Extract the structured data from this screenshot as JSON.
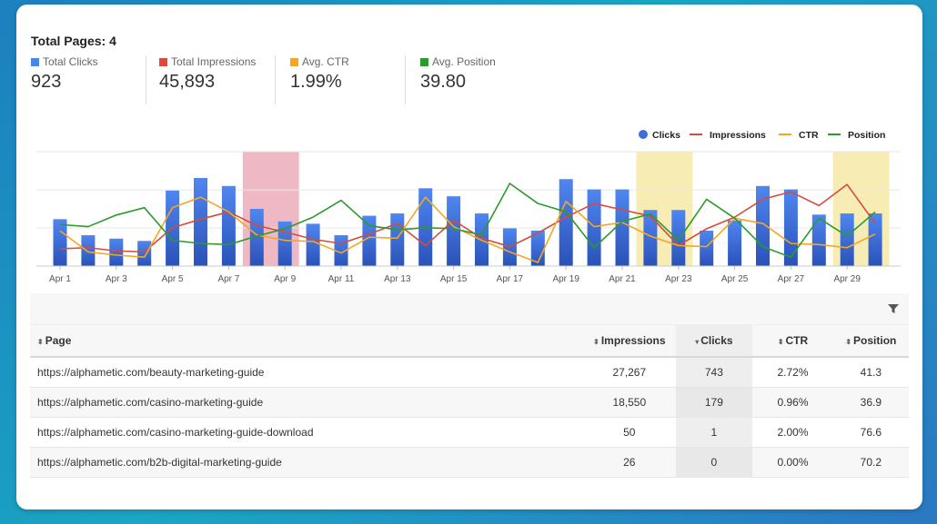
{
  "summary": {
    "title": "Total Pages: 4",
    "metrics": [
      {
        "label": "Total Clicks",
        "value": "923",
        "color": "#4a86e8"
      },
      {
        "label": "Total Impressions",
        "value": "45,893",
        "color": "#e0483a"
      },
      {
        "label": "Avg. CTR",
        "value": "1.99%",
        "color": "#f5a623"
      },
      {
        "label": "Avg. Position",
        "value": "39.80",
        "color": "#2e9a2e"
      }
    ]
  },
  "chart_data": {
    "type": "bar",
    "x": [
      "Apr 1",
      "Apr 2",
      "Apr 3",
      "Apr 4",
      "Apr 5",
      "Apr 6",
      "Apr 7",
      "Apr 8",
      "Apr 9",
      "Apr 10",
      "Apr 11",
      "Apr 12",
      "Apr 13",
      "Apr 14",
      "Apr 15",
      "Apr 16",
      "Apr 17",
      "Apr 18",
      "Apr 19",
      "Apr 20",
      "Apr 21",
      "Apr 22",
      "Apr 23",
      "Apr 24",
      "Apr 25",
      "Apr 26",
      "Apr 27",
      "Apr 28",
      "Apr 29",
      "Apr 30"
    ],
    "tick_labels": [
      "Apr 1",
      "Apr 3",
      "Apr 5",
      "Apr 7",
      "Apr 9",
      "Apr 11",
      "Apr 13",
      "Apr 15",
      "Apr 17",
      "Apr 19",
      "Apr 21",
      "Apr 23",
      "Apr 25",
      "Apr 27",
      "Apr 29"
    ],
    "series": [
      {
        "name": "Clicks",
        "type": "bar",
        "color": "#3a6fd8",
        "values": [
          41,
          27,
          24,
          22,
          66,
          77,
          70,
          50,
          39,
          37,
          27,
          44,
          46,
          68,
          61,
          46,
          33,
          31,
          76,
          67,
          67,
          49,
          49,
          31,
          40,
          70,
          67,
          45,
          46,
          46
        ]
      },
      {
        "name": "Impressions",
        "type": "line",
        "color": "#d84a3a",
        "values": [
          0.13,
          0.14,
          0.11,
          0.1,
          0.33,
          0.41,
          0.48,
          0.35,
          0.29,
          0.22,
          0.18,
          0.27,
          0.37,
          0.16,
          0.4,
          0.23,
          0.15,
          0.28,
          0.43,
          0.56,
          0.5,
          0.44,
          0.16,
          0.32,
          0.43,
          0.6,
          0.67,
          0.54,
          0.74,
          0.37
        ]
      },
      {
        "name": "CTR",
        "type": "line",
        "color": "#f5a623",
        "values": [
          0.3,
          0.1,
          0.07,
          0.05,
          0.52,
          0.62,
          0.48,
          0.26,
          0.21,
          0.2,
          0.09,
          0.24,
          0.23,
          0.62,
          0.34,
          0.21,
          0.1,
          0.0,
          0.58,
          0.34,
          0.38,
          0.25,
          0.16,
          0.15,
          0.42,
          0.37,
          0.18,
          0.17,
          0.14,
          0.27
        ]
      },
      {
        "name": "Position",
        "type": "line",
        "color": "#2e9a2e",
        "values": [
          0.36,
          0.34,
          0.45,
          0.52,
          0.21,
          0.18,
          0.17,
          0.25,
          0.32,
          0.43,
          0.59,
          0.35,
          0.31,
          0.33,
          0.32,
          0.26,
          0.75,
          0.56,
          0.48,
          0.14,
          0.39,
          0.46,
          0.21,
          0.6,
          0.42,
          0.15,
          0.05,
          0.42,
          0.25,
          0.48
        ]
      }
    ],
    "highlight_bands": [
      {
        "from": "Apr 8",
        "to": "Apr 9",
        "color": "#eeb8c4"
      },
      {
        "from": "Apr 22",
        "to": "Apr 23",
        "color": "#f6ecb4"
      },
      {
        "from": "Apr 29",
        "to": "Apr 30",
        "color": "#f6ecb4"
      }
    ],
    "legend": [
      "Clicks",
      "Impressions",
      "CTR",
      "Position"
    ],
    "legend_placement": "top-right",
    "grid": true,
    "ylim": [
      0,
      100
    ]
  },
  "table": {
    "columns": [
      "Page",
      "Impressions",
      "Clicks",
      "CTR",
      "Position"
    ],
    "rows": [
      {
        "page": "https://alphametic.com/beauty-marketing-guide",
        "impressions": "27,267",
        "clicks": "743",
        "ctr": "2.72%",
        "position": "41.3"
      },
      {
        "page": "https://alphametic.com/casino-marketing-guide",
        "impressions": "18,550",
        "clicks": "179",
        "ctr": "0.96%",
        "position": "36.9"
      },
      {
        "page": "https://alphametic.com/casino-marketing-guide-download",
        "impressions": "50",
        "clicks": "1",
        "ctr": "2.00%",
        "position": "76.6"
      },
      {
        "page": "https://alphametic.com/b2b-digital-marketing-guide",
        "impressions": "26",
        "clicks": "0",
        "ctr": "0.00%",
        "position": "70.2"
      }
    ]
  },
  "icons": {
    "filter": "filter-icon",
    "sort": "sort-icon",
    "sort_desc": "sort-desc-icon"
  }
}
